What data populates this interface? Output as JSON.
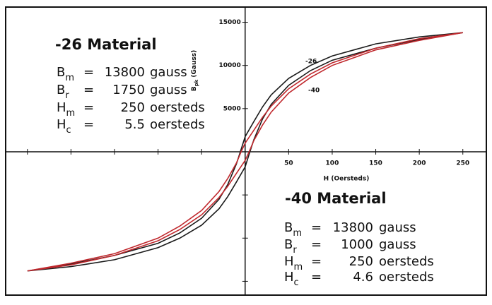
{
  "chart_data": {
    "type": "line",
    "xlabel": "H (Oersteds)",
    "ylabel_parts": [
      "B",
      "pk",
      " (Gauss)"
    ],
    "xlim": [
      -275,
      277
    ],
    "ylim": [
      -16600,
      16760
    ],
    "xticks": [
      50,
      100,
      150,
      200,
      250
    ],
    "xticks_unlabeled": [
      -250,
      -200,
      -150,
      -100,
      -50
    ],
    "yticks": [
      5000,
      10000,
      15000
    ],
    "yticks_unlabeled": [
      -15000,
      -10000,
      -5000
    ],
    "series": [
      {
        "name": "-26",
        "color": "#1a1a1a",
        "x": [
          250,
          200,
          150,
          100,
          75,
          50,
          30,
          20,
          10,
          0,
          -5.5,
          -10,
          -20,
          -30,
          -50,
          -75,
          -100,
          -150,
          -200,
          -250,
          -250,
          -200,
          -150,
          -100,
          -75,
          -50,
          -30,
          -20,
          -10,
          0,
          5.5,
          10,
          20,
          30,
          50,
          75,
          100,
          150,
          200,
          250
        ],
        "values": [
          13800,
          13300,
          12500,
          11100,
          10000,
          8500,
          6600,
          5200,
          3500,
          1750,
          0,
          -1400,
          -3800,
          -5500,
          -7700,
          -9400,
          -10600,
          -12000,
          -13000,
          -13800,
          -13800,
          -13300,
          -12500,
          -11100,
          -10000,
          -8500,
          -6600,
          -5200,
          -3500,
          -1750,
          0,
          1400,
          3800,
          5500,
          7700,
          9400,
          10600,
          12000,
          13000,
          13800
        ]
      },
      {
        "name": "-40",
        "color": "#c0282d",
        "x": [
          250,
          200,
          150,
          100,
          75,
          50,
          30,
          20,
          10,
          0,
          -4.6,
          -10,
          -20,
          -30,
          -50,
          -75,
          -100,
          -150,
          -200,
          -250,
          -250,
          -200,
          -150,
          -100,
          -75,
          -50,
          -30,
          -20,
          -10,
          0,
          4.6,
          10,
          20,
          30,
          50,
          75,
          100,
          150,
          200,
          250
        ],
        "values": [
          13800,
          13100,
          12000,
          10300,
          9000,
          7300,
          5300,
          4000,
          2500,
          1000,
          0,
          -1300,
          -3100,
          -4600,
          -6800,
          -8600,
          -10000,
          -11800,
          -12900,
          -13800,
          -13800,
          -13100,
          -12000,
          -10300,
          -9000,
          -7300,
          -5300,
          -4000,
          -2500,
          -1000,
          0,
          1300,
          3100,
          4600,
          6800,
          8600,
          10000,
          11800,
          12900,
          13800
        ]
      }
    ],
    "materials": [
      {
        "title": "-26 Material",
        "rows": [
          [
            "B",
            "m",
            "=",
            13800,
            "gauss"
          ],
          [
            "B",
            "r",
            "=",
            1750,
            "gauss"
          ],
          [
            "H",
            "m",
            "=",
            250,
            "oersteds"
          ],
          [
            "H",
            "c",
            "=",
            5.5,
            "oersteds"
          ]
        ]
      },
      {
        "title": "-40 Material",
        "rows": [
          [
            "B",
            "m",
            "=",
            13800,
            "gauss"
          ],
          [
            "B",
            "r",
            "=",
            1000,
            "gauss"
          ],
          [
            "H",
            "m",
            "=",
            250,
            "oersteds"
          ],
          [
            "H",
            "c",
            "=",
            4.6,
            "oersteds"
          ]
        ]
      }
    ]
  }
}
